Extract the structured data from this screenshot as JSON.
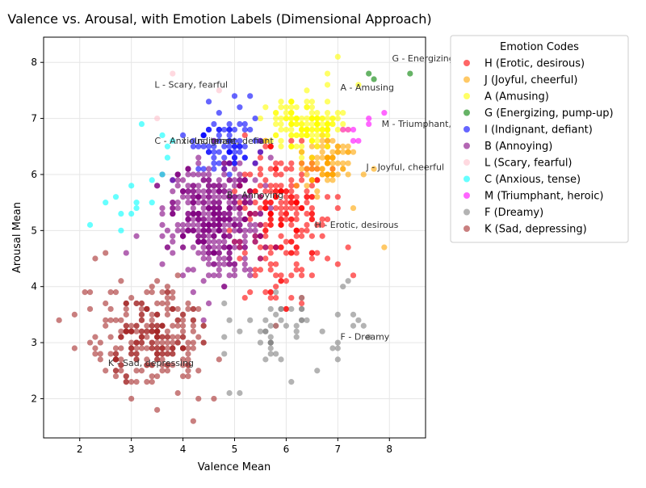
{
  "chart_data": {
    "type": "scatter",
    "title": "Valence vs. Arousal, with Emotion Labels (Dimensional Approach)",
    "xlabel": "Valence Mean",
    "ylabel": "Arousal Mean",
    "xlim": [
      1.3,
      8.7
    ],
    "ylim": [
      1.3,
      8.45
    ],
    "xticks": [
      2,
      3,
      4,
      5,
      6,
      7,
      8
    ],
    "yticks": [
      2,
      3,
      4,
      5,
      6,
      7,
      8
    ],
    "grid": true,
    "legend": {
      "title": "Emotion Codes",
      "placement": "upper right, outside plot"
    },
    "series": [
      {
        "code": "H",
        "name": "H (Erotic, desirous)",
        "color": "#ff0000",
        "center": [
          5.9,
          5.2
        ],
        "spread": [
          0.55,
          0.9
        ],
        "count": 230,
        "points": [
          [
            7.3,
            4.2
          ],
          [
            7.2,
            4.7
          ],
          [
            6.8,
            4.5
          ],
          [
            5.2,
            3.8
          ],
          [
            5.3,
            3.9
          ]
        ],
        "label": {
          "text": "H - Erotic, desirous",
          "x": 6.55,
          "y": 5.05
        }
      },
      {
        "code": "J",
        "name": "J (Joyful, cheerful)",
        "color": "#ffa500",
        "center": [
          6.8,
          6.2
        ],
        "spread": [
          0.35,
          0.35
        ],
        "count": 80,
        "points": [
          [
            7.9,
            4.7
          ],
          [
            7.3,
            5.4
          ],
          [
            7.7,
            6.1
          ],
          [
            7.5,
            6.0
          ]
        ],
        "label": {
          "text": "J - Joyful, cheerful",
          "x": 7.55,
          "y": 6.08
        }
      },
      {
        "code": "A",
        "name": "A (Amusing)",
        "color": "#ffff00",
        "center": [
          6.4,
          6.9
        ],
        "spread": [
          0.45,
          0.35
        ],
        "count": 140,
        "points": [
          [
            7.0,
            8.1
          ],
          [
            6.8,
            7.8
          ],
          [
            7.4,
            7.6
          ],
          [
            5.6,
            7.2
          ]
        ],
        "label": {
          "text": "A - Amusing",
          "x": 7.05,
          "y": 7.5
        }
      },
      {
        "code": "G",
        "name": "G (Energizing, pump-up)",
        "color": "#008000",
        "center": [
          7.9,
          7.7
        ],
        "spread": [
          0.3,
          0.06
        ],
        "count": 0,
        "points": [
          [
            7.6,
            7.8
          ],
          [
            7.7,
            7.7
          ],
          [
            8.4,
            7.8
          ]
        ],
        "label": {
          "text": "G - Energizing, pump-up",
          "x": 8.05,
          "y": 8.02
        }
      },
      {
        "code": "I",
        "name": "I (Indignant, defiant)",
        "color": "#0000ff",
        "center": [
          4.8,
          6.6
        ],
        "spread": [
          0.45,
          0.4
        ],
        "count": 70,
        "points": [
          [
            4.5,
            7.3
          ],
          [
            5.0,
            7.4
          ],
          [
            5.3,
            7.4
          ],
          [
            3.8,
            5.9
          ],
          [
            4.0,
            6.7
          ]
        ],
        "label": {
          "text": "I - Indignant, defiant",
          "x": 4.0,
          "y": 6.55
        }
      },
      {
        "code": "B",
        "name": "B (Annoying)",
        "color": "#800080",
        "center": [
          4.6,
          5.2
        ],
        "spread": [
          0.65,
          0.75
        ],
        "count": 380,
        "points": [
          [
            3.1,
            4.9
          ],
          [
            2.9,
            4.6
          ],
          [
            5.7,
            6.3
          ],
          [
            4.4,
            3.4
          ]
        ],
        "label": {
          "text": "B - Annoying",
          "x": 4.85,
          "y": 5.58
        }
      },
      {
        "code": "L",
        "name": "L (Scary, fearful)",
        "color": "#ffc0cb",
        "center": [
          4.1,
          7.4
        ],
        "spread": [
          0.5,
          0.3
        ],
        "count": 0,
        "points": [
          [
            3.8,
            7.8
          ],
          [
            4.7,
            7.5
          ],
          [
            3.5,
            7.0
          ]
        ],
        "label": {
          "text": "L - Scary, fearful",
          "x": 3.45,
          "y": 7.55
        }
      },
      {
        "code": "C",
        "name": "C (Anxious, tense)",
        "color": "#00ffff",
        "center": [
          3.2,
          5.8
        ],
        "spread": [
          0.5,
          0.5
        ],
        "count": 0,
        "points": [
          [
            2.2,
            5.1
          ],
          [
            2.5,
            5.5
          ],
          [
            2.7,
            5.6
          ],
          [
            2.8,
            5.3
          ],
          [
            2.8,
            5.0
          ],
          [
            3.0,
            5.3
          ],
          [
            3.0,
            5.8
          ],
          [
            3.1,
            5.4
          ],
          [
            3.1,
            5.5
          ],
          [
            3.2,
            6.9
          ],
          [
            3.4,
            5.9
          ],
          [
            3.4,
            5.5
          ],
          [
            3.6,
            6.0
          ],
          [
            3.6,
            6.7
          ],
          [
            3.7,
            6.5
          ],
          [
            3.7,
            6.3
          ],
          [
            3.8,
            6.6
          ]
        ],
        "label": {
          "text": "C - Anxious, tense",
          "x": 3.45,
          "y": 6.55
        }
      },
      {
        "code": "M",
        "name": "M (Triumphant, heroic)",
        "color": "#ff00ff",
        "center": [
          7.4,
          6.8
        ],
        "spread": [
          0.2,
          0.15
        ],
        "count": 0,
        "points": [
          [
            7.1,
            6.8
          ],
          [
            7.2,
            6.8
          ],
          [
            7.3,
            6.8
          ],
          [
            7.3,
            6.6
          ],
          [
            7.4,
            6.6
          ],
          [
            7.6,
            7.0
          ],
          [
            7.6,
            6.9
          ],
          [
            7.9,
            7.1
          ]
        ],
        "label": {
          "text": "M - Triumphant, heroic",
          "x": 7.85,
          "y": 6.85
        }
      },
      {
        "code": "F",
        "name": "F (Dreamy)",
        "color": "#808080",
        "center": [
          5.8,
          3.2
        ],
        "spread": [
          0.8,
          0.45
        ],
        "count": 45,
        "points": [
          [
            7.1,
            4.0
          ],
          [
            7.2,
            4.1
          ],
          [
            7.3,
            3.5
          ],
          [
            7.3,
            3.3
          ],
          [
            7.4,
            3.4
          ],
          [
            7.6,
            3.1
          ],
          [
            7.5,
            3.3
          ],
          [
            6.1,
            2.3
          ],
          [
            4.9,
            2.1
          ],
          [
            5.1,
            2.1
          ],
          [
            6.6,
            2.5
          ]
        ],
        "label": {
          "text": "F - Dreamy",
          "x": 7.05,
          "y": 3.05
        }
      },
      {
        "code": "K",
        "name": "K (Sad, depressing)",
        "color": "#a52a2a",
        "center": [
          3.4,
          3.1
        ],
        "spread": [
          0.75,
          0.6
        ],
        "count": 260,
        "points": [
          [
            1.6,
            3.4
          ],
          [
            1.9,
            2.9
          ],
          [
            1.9,
            3.5
          ],
          [
            2.1,
            3.9
          ],
          [
            4.2,
            1.6
          ],
          [
            3.5,
            1.8
          ],
          [
            4.6,
            2.0
          ],
          [
            2.3,
            4.5
          ],
          [
            2.5,
            4.6
          ]
        ],
        "label": {
          "text": "K - Sad, depressing",
          "x": 2.55,
          "y": 2.58
        }
      }
    ]
  }
}
